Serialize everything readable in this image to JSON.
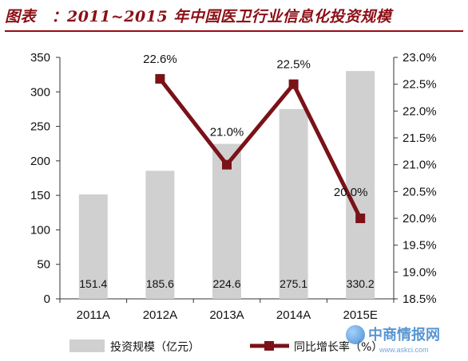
{
  "title": "图表　：2011~2015 年中国医卫行业信息化投资规模",
  "watermark": {
    "brand": "中商情报网",
    "site": "www.askci.com"
  },
  "colors": {
    "bar": "#d0d0d0",
    "line": "#7a1218",
    "title": "#8b0f16"
  },
  "chart_data": {
    "type": "bar",
    "categories": [
      "2011A",
      "2012A",
      "2013A",
      "2014A",
      "2015E"
    ],
    "series": [
      {
        "name": "投资规模（亿元）",
        "type": "bar",
        "axis": "left",
        "values": [
          151.4,
          185.6,
          224.6,
          275.1,
          330.2
        ],
        "labels": [
          "151.4",
          "185.6",
          "224.6",
          "275.1",
          "330.2"
        ]
      },
      {
        "name": "同比增长率（%）",
        "type": "line",
        "axis": "right",
        "values": [
          null,
          22.6,
          21.0,
          22.5,
          20.0
        ],
        "labels": [
          "",
          "22.6%",
          "21.0%",
          "22.5%",
          "20.0%"
        ]
      }
    ],
    "y_left": {
      "min": 0,
      "max": 350,
      "ticks": [
        "0",
        "50",
        "100",
        "150",
        "200",
        "250",
        "300",
        "350"
      ]
    },
    "y_right": {
      "min": 18.5,
      "max": 23.0,
      "ticks": [
        "18.5%",
        "19.0%",
        "19.5%",
        "20.0%",
        "20.5%",
        "21.0%",
        "21.5%",
        "22.0%",
        "22.5%",
        "23.0%"
      ]
    },
    "legend_position": "bottom",
    "grid": false
  }
}
